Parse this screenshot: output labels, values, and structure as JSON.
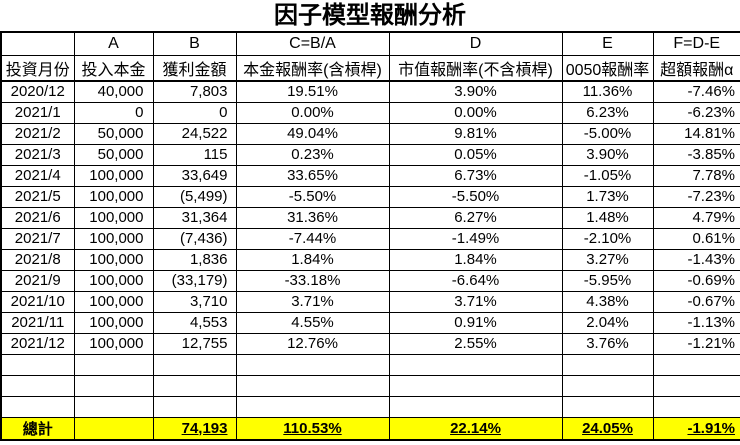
{
  "title": "因子模型報酬分析",
  "colors": {
    "total_row_bg": "#ffff00",
    "negative_number": "#c43b3f",
    "border": "#000000",
    "text": "#000000"
  },
  "table": {
    "column_letters": [
      "",
      "A",
      "B",
      "C=B/A",
      "D",
      "E",
      "F=D-E"
    ],
    "column_headers": [
      "投資月份",
      "投入本金",
      "獲利金額",
      "本金報酬率(含槓桿)",
      "市值報酬率(不含槓桿)",
      "0050報酬率",
      "超額報酬α"
    ],
    "rows": [
      [
        "2020/12",
        "40,000",
        "7,803",
        "19.51%",
        "3.90%",
        "11.36%",
        "-7.46%"
      ],
      [
        "2021/1",
        "0",
        "0",
        "0.00%",
        "0.00%",
        "6.23%",
        "-6.23%"
      ],
      [
        "2021/2",
        "50,000",
        "24,522",
        "49.04%",
        "9.81%",
        "-5.00%",
        "14.81%"
      ],
      [
        "2021/3",
        "50,000",
        "115",
        "0.23%",
        "0.05%",
        "3.90%",
        "-3.85%"
      ],
      [
        "2021/4",
        "100,000",
        "33,649",
        "33.65%",
        "6.73%",
        "-1.05%",
        "7.78%"
      ],
      [
        "2021/5",
        "100,000",
        "(5,499)",
        "-5.50%",
        "-5.50%",
        "1.73%",
        "-7.23%"
      ],
      [
        "2021/6",
        "100,000",
        "31,364",
        "31.36%",
        "6.27%",
        "1.48%",
        "4.79%"
      ],
      [
        "2021/7",
        "100,000",
        "(7,436)",
        "-7.44%",
        "-1.49%",
        "-2.10%",
        "0.61%"
      ],
      [
        "2021/8",
        "100,000",
        "1,836",
        "1.84%",
        "1.84%",
        "3.27%",
        "-1.43%"
      ],
      [
        "2021/9",
        "100,000",
        "(33,179)",
        "-33.18%",
        "-6.64%",
        "-5.95%",
        "-0.69%"
      ],
      [
        "2021/10",
        "100,000",
        "3,710",
        "3.71%",
        "3.71%",
        "4.38%",
        "-0.67%"
      ],
      [
        "2021/11",
        "100,000",
        "4,553",
        "4.55%",
        "0.91%",
        "2.04%",
        "-1.13%"
      ],
      [
        "2021/12",
        "100,000",
        "12,755",
        "12.76%",
        "2.55%",
        "3.76%",
        "-1.21%"
      ]
    ],
    "empty_row_count": 3,
    "total_row": [
      "總計",
      "",
      "74,193",
      "110.53%",
      "22.14%",
      "24.05%",
      "-1.91%"
    ]
  }
}
